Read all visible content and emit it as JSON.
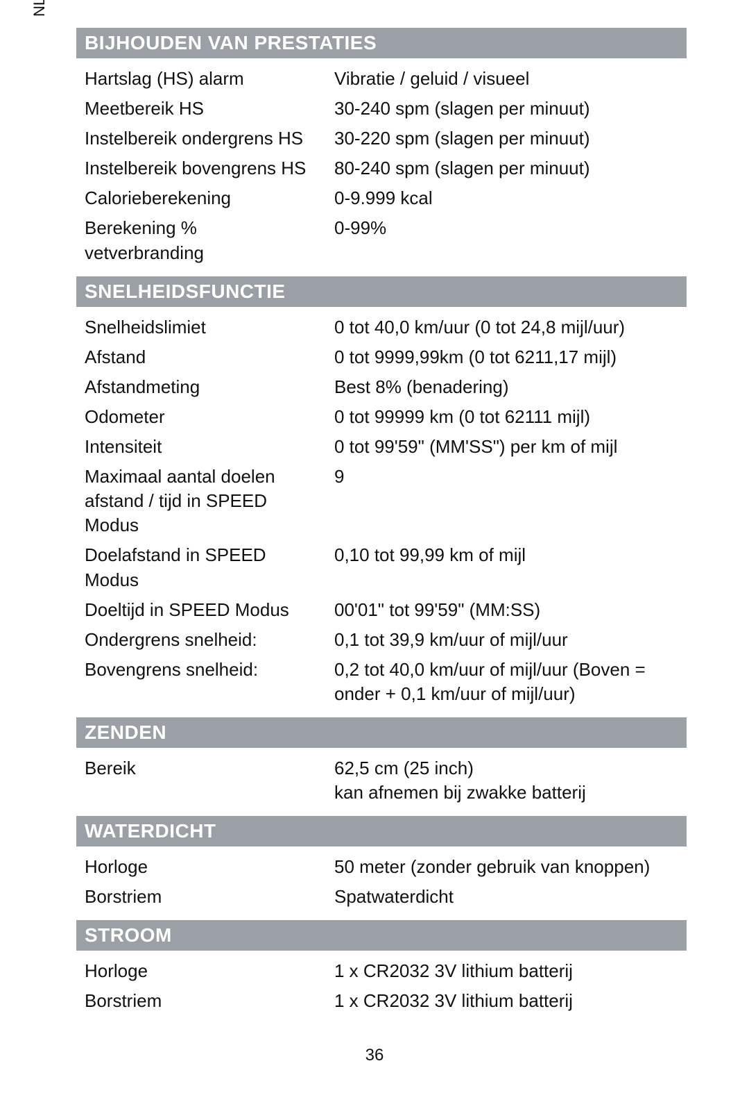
{
  "side_label": "NL",
  "page_number": "36",
  "header_bg": "#9aa0a6",
  "header_fg": "#ffffff",
  "text_color": "#111111",
  "sections": {
    "prestaties": {
      "title": "BIJHOUDEN VAN PRESTATIES",
      "rows": [
        {
          "label": "Hartslag (HS) alarm",
          "value": "Vibratie / geluid / visueel"
        },
        {
          "label": "Meetbereik HS",
          "value": "30-240 spm (slagen per minuut)"
        },
        {
          "label": "Instelbereik ondergrens HS",
          "value": "30-220 spm (slagen per minuut)"
        },
        {
          "label": "Instelbereik bovengrens HS",
          "value": "80-240 spm (slagen per minuut)"
        },
        {
          "label": "Calorieberekening",
          "value": "0-9.999 kcal"
        },
        {
          "label": "Berekening % vetverbranding",
          "value": "0-99%"
        }
      ]
    },
    "snelheid": {
      "title": "SNELHEIDSFUNCTIE",
      "rows": [
        {
          "label": "Snelheidslimiet",
          "value": "0 tot 40,0 km/uur (0 tot 24,8 mijl/uur)"
        },
        {
          "label": "Afstand",
          "value": "0 tot 9999,99km (0 tot 6211,17 mijl)"
        },
        {
          "label": "Afstandmeting",
          "value": "Best 8% (benadering)"
        },
        {
          "label": "Odometer",
          "value": "0 tot 99999 km (0 tot 62111 mijl)"
        },
        {
          "label": "Intensiteit",
          "value": "0 tot 99'59\" (MM'SS\") per km of mijl"
        },
        {
          "label": "Maximaal aantal doelen afstand / tijd in SPEED Modus",
          "value": "9"
        },
        {
          "label": "Doelafstand in SPEED Modus",
          "value": "0,10 tot 99,99 km of mijl"
        },
        {
          "label": "Doeltijd in SPEED Modus",
          "value": "00'01\" tot 99'59\" (MM:SS)"
        },
        {
          "label": "Ondergrens snelheid:",
          "value": "0,1 tot 39,9 km/uur of mijl/uur"
        },
        {
          "label": "Bovengrens snelheid:",
          "value": "0,2 tot 40,0 km/uur of mijl/uur (Boven = onder + 0,1 km/uur of mijl/uur)"
        }
      ]
    },
    "zenden": {
      "title": "ZENDEN",
      "rows": [
        {
          "label": "Bereik",
          "value": "62,5 cm (25 inch)\nkan afnemen bij zwakke batterij"
        }
      ]
    },
    "waterdicht": {
      "title": "WATERDICHT",
      "rows": [
        {
          "label": "Horloge",
          "value": "50 meter (zonder gebruik van knoppen)"
        },
        {
          "label": "Borstriem",
          "value": "Spatwaterdicht"
        }
      ]
    },
    "stroom": {
      "title": "STROOM",
      "rows": [
        {
          "label": "Horloge",
          "value": "1 x CR2032 3V lithium batterij"
        },
        {
          "label": "Borstriem",
          "value": "1 x CR2032 3V lithium batterij"
        }
      ]
    }
  }
}
